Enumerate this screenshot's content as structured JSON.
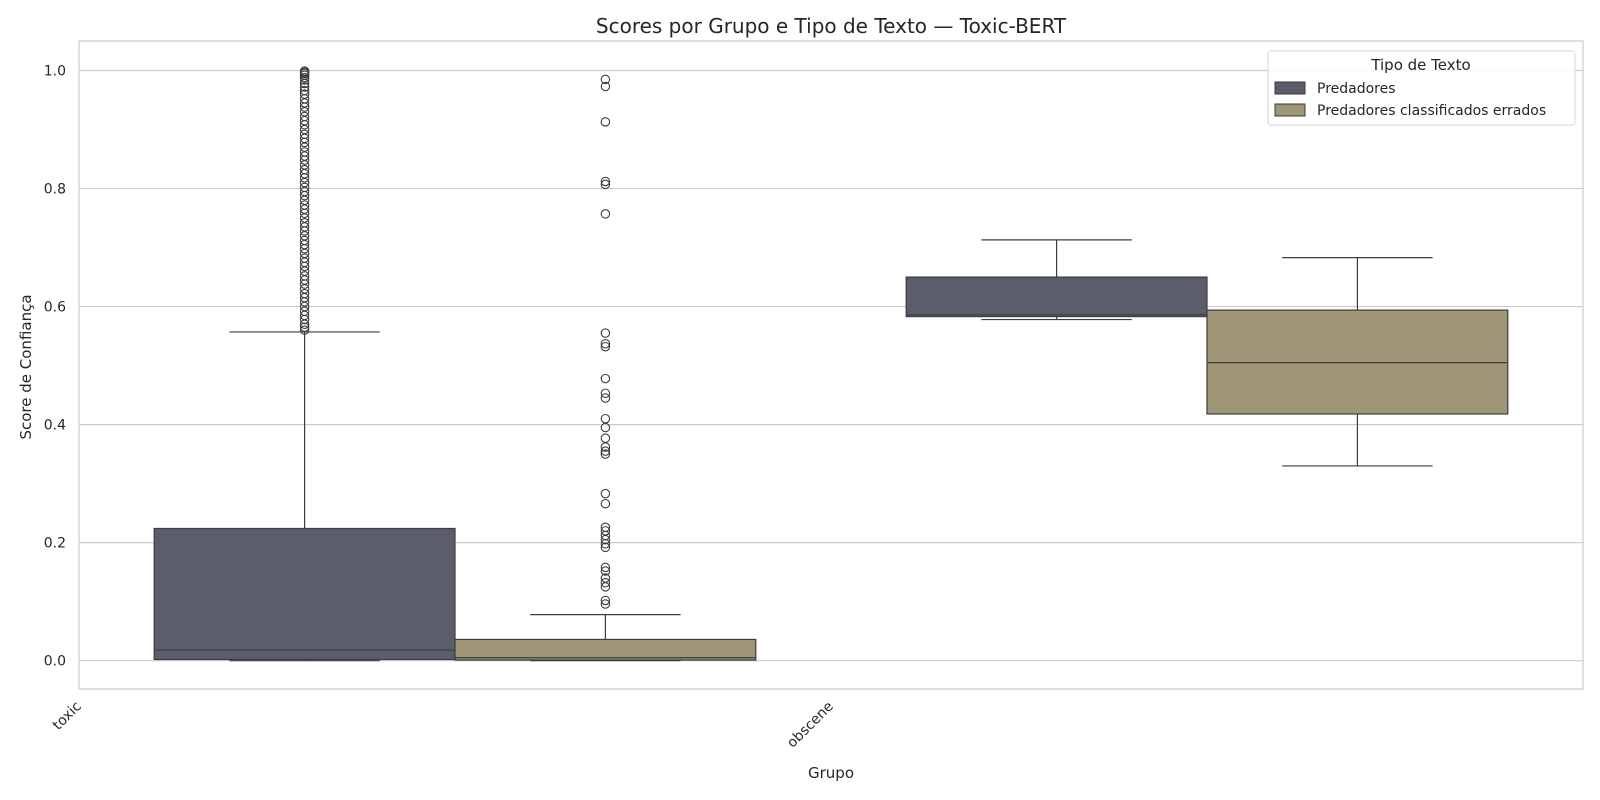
{
  "chart_data": {
    "type": "boxplot",
    "title": "Scores por Grupo e Tipo de Texto — Toxic-BERT",
    "xlabel": "Grupo",
    "ylabel": "Score de Confiança",
    "categories": [
      "toxic",
      "obscene"
    ],
    "ylim": [
      -0.048,
      1.05
    ],
    "yticks": [
      0.0,
      0.2,
      0.4,
      0.6,
      0.8,
      1.0
    ],
    "ytick_labels": [
      "0.0",
      "0.2",
      "0.4",
      "0.6",
      "0.8",
      "1.0"
    ],
    "grid": true,
    "legend": {
      "title": "Tipo de Texto",
      "placement": "top-right"
    },
    "series": [
      {
        "name": "Predadores",
        "color": "#5a5e6b",
        "boxes": [
          {
            "category": "toxic",
            "whisker_low": 0.0,
            "q1": 0.002,
            "median": 0.018,
            "q3": 0.224,
            "whisker_high": 0.557,
            "outliers": [
              0.56,
              0.565,
              0.57,
              0.578,
              0.585,
              0.592,
              0.6,
              0.608,
              0.615,
              0.622,
              0.63,
              0.638,
              0.645,
              0.652,
              0.66,
              0.668,
              0.675,
              0.682,
              0.69,
              0.698,
              0.705,
              0.712,
              0.72,
              0.728,
              0.735,
              0.742,
              0.75,
              0.758,
              0.765,
              0.772,
              0.78,
              0.788,
              0.795,
              0.802,
              0.81,
              0.818,
              0.825,
              0.832,
              0.84,
              0.848,
              0.855,
              0.862,
              0.87,
              0.878,
              0.885,
              0.892,
              0.9,
              0.908,
              0.915,
              0.922,
              0.93,
              0.938,
              0.945,
              0.952,
              0.96,
              0.966,
              0.972,
              0.978,
              0.984,
              0.988,
              0.992,
              0.995,
              0.997,
              0.999
            ]
          },
          {
            "category": "obscene",
            "whisker_low": 0.578,
            "q1": 0.583,
            "median": 0.586,
            "q3": 0.65,
            "whisker_high": 0.713,
            "outliers": []
          }
        ]
      },
      {
        "name": "Predadores classificados errados",
        "color": "#9f9677",
        "boxes": [
          {
            "category": "toxic",
            "whisker_low": 0.0,
            "q1": 0.001,
            "median": 0.005,
            "q3": 0.036,
            "whisker_high": 0.078,
            "outliers": [
              0.096,
              0.102,
              0.125,
              0.132,
              0.14,
              0.152,
              0.158,
              0.192,
              0.198,
              0.205,
              0.212,
              0.22,
              0.226,
              0.266,
              0.283,
              0.35,
              0.355,
              0.362,
              0.377,
              0.395,
              0.41,
              0.445,
              0.453,
              0.478,
              0.532,
              0.537,
              0.555,
              0.757,
              0.807,
              0.812,
              0.913,
              0.973,
              0.985
            ]
          },
          {
            "category": "obscene",
            "whisker_low": 0.33,
            "q1": 0.418,
            "median": 0.505,
            "q3": 0.594,
            "whisker_high": 0.683,
            "outliers": []
          }
        ]
      }
    ]
  }
}
